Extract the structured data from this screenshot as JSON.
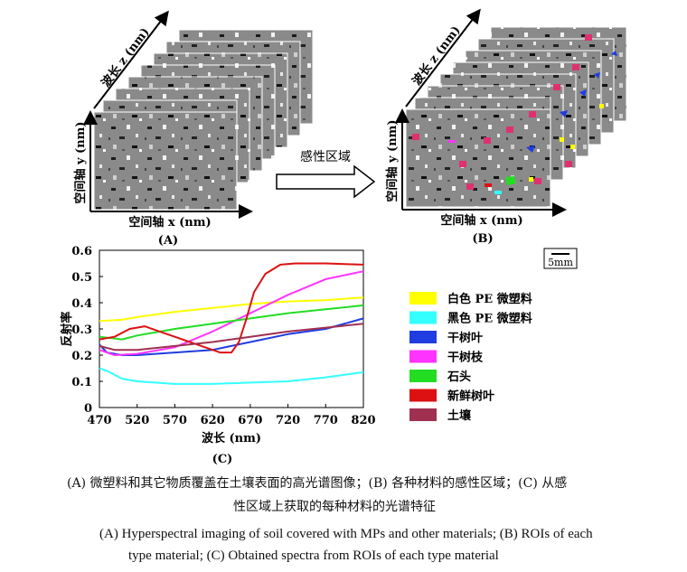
{
  "panel_a": {
    "axis_z": "波长 z (nm)",
    "axis_y": "空间轴 y (nm)",
    "axis_x": "空间轴 x (nm)",
    "label": "(A)"
  },
  "arrow_label": "感性区域",
  "panel_b": {
    "axis_z": "波长 z (nm)",
    "axis_y": "空间轴 y (nm)",
    "axis_x": "空间轴 x (nm)",
    "label": "(B)"
  },
  "scale_bar": "5mm",
  "chart_data": {
    "type": "line",
    "xlabel": "波长 (nm)",
    "ylabel": "反射率",
    "xlim": [
      470,
      820
    ],
    "ylim": [
      0,
      0.6
    ],
    "xticks": [
      470,
      520,
      570,
      620,
      670,
      720,
      770,
      820
    ],
    "yticks": [
      0,
      0.1,
      0.2,
      0.3,
      0.4,
      0.5,
      0.6
    ],
    "series": [
      {
        "name": "白色 PE 微塑料",
        "color": "#ffff00",
        "x": [
          470,
          500,
          520,
          570,
          620,
          670,
          720,
          770,
          820
        ],
        "y": [
          0.33,
          0.335,
          0.345,
          0.365,
          0.38,
          0.395,
          0.405,
          0.41,
          0.42
        ]
      },
      {
        "name": "黑色 PE 微塑料",
        "color": "#33ffff",
        "x": [
          470,
          480,
          500,
          520,
          570,
          620,
          670,
          720,
          770,
          820
        ],
        "y": [
          0.15,
          0.14,
          0.11,
          0.1,
          0.09,
          0.09,
          0.095,
          0.1,
          0.115,
          0.135
        ]
      },
      {
        "name": "干树叶",
        "color": "#1f3de0",
        "x": [
          470,
          480,
          500,
          520,
          570,
          620,
          670,
          720,
          770,
          820
        ],
        "y": [
          0.24,
          0.21,
          0.2,
          0.2,
          0.21,
          0.22,
          0.25,
          0.28,
          0.3,
          0.34
        ]
      },
      {
        "name": "干树枝",
        "color": "#ff33ff",
        "x": [
          470,
          490,
          520,
          570,
          620,
          670,
          720,
          770,
          820
        ],
        "y": [
          0.22,
          0.2,
          0.205,
          0.23,
          0.29,
          0.36,
          0.43,
          0.49,
          0.52
        ]
      },
      {
        "name": "石头",
        "color": "#22dd22",
        "x": [
          470,
          500,
          520,
          570,
          620,
          670,
          720,
          770,
          820
        ],
        "y": [
          0.27,
          0.26,
          0.275,
          0.3,
          0.32,
          0.34,
          0.36,
          0.375,
          0.39
        ]
      },
      {
        "name": "新鲜树叶",
        "color": "#dd1111",
        "x": [
          470,
          490,
          510,
          530,
          550,
          570,
          590,
          610,
          630,
          645,
          655,
          665,
          675,
          690,
          710,
          730,
          770,
          820
        ],
        "y": [
          0.26,
          0.27,
          0.3,
          0.31,
          0.29,
          0.27,
          0.25,
          0.23,
          0.21,
          0.21,
          0.25,
          0.34,
          0.44,
          0.51,
          0.545,
          0.55,
          0.55,
          0.545
        ]
      },
      {
        "name": "土壤",
        "color": "#a03050",
        "x": [
          470,
          490,
          520,
          570,
          620,
          670,
          720,
          770,
          820
        ],
        "y": [
          0.235,
          0.22,
          0.22,
          0.235,
          0.25,
          0.27,
          0.29,
          0.305,
          0.32
        ]
      }
    ]
  },
  "panel_c_label": "(C)",
  "caption": {
    "zh_line1": "(A) 微塑料和其它物质覆盖在土壤表面的高光谱图像；(B) 各种材料的感性区域；(C) 从感",
    "zh_line2": "性区域上获取的每种材料的光谱特征",
    "en_line1": "(A) Hyperspectral imaging of soil covered with MPs and other materials; (B) ROIs of each",
    "en_line2": "type material; (C) Obtained spectra from ROIs of each type material"
  }
}
